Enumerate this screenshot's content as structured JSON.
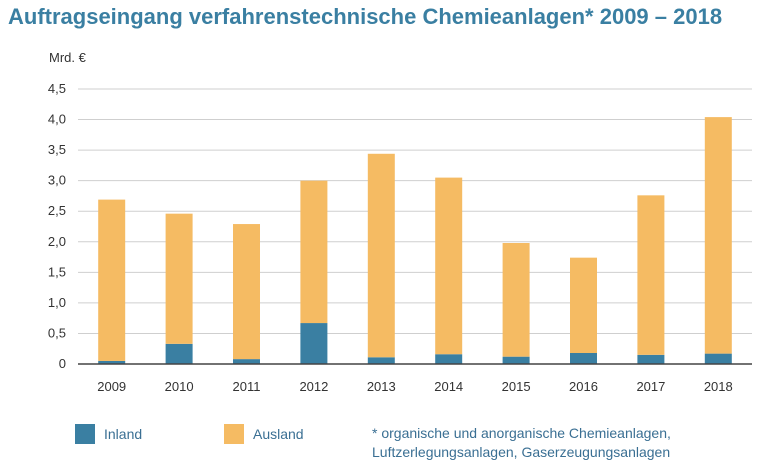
{
  "chart_data": {
    "type": "bar",
    "stacked": true,
    "title": "Auftragseingang verfahrenstechnische Chemieanlagen* 2009 – 2018",
    "ylabel": "Mrd. €",
    "xlabel": "",
    "ylim": [
      0,
      4.5
    ],
    "yticks": [
      "0",
      "0,5",
      "1,0",
      "1,5",
      "2,0",
      "2,5",
      "3,0",
      "3,5",
      "4,0",
      "4,5"
    ],
    "grid": true,
    "categories": [
      "2009",
      "2010",
      "2011",
      "2012",
      "2013",
      "2014",
      "2015",
      "2016",
      "2017",
      "2018"
    ],
    "series": [
      {
        "name": "Inland",
        "color": "#3a7fa2",
        "values": [
          0.05,
          0.33,
          0.08,
          0.67,
          0.11,
          0.16,
          0.12,
          0.18,
          0.15,
          0.17
        ]
      },
      {
        "name": "Ausland",
        "color": "#f5bb63",
        "values": [
          2.64,
          2.13,
          2.21,
          2.33,
          3.33,
          2.89,
          1.86,
          1.56,
          2.61,
          3.87
        ]
      }
    ],
    "legend_position": "bottom",
    "footnote": [
      "* organische und anorganische Chemieanlagen,",
      "Luftzerlegungsanlagen, Gaserzeugungsanlagen"
    ]
  }
}
